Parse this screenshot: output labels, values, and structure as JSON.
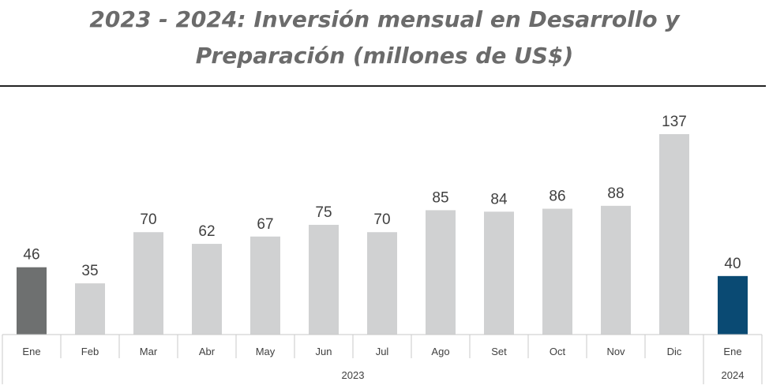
{
  "chart_data": {
    "type": "bar",
    "title": "2023 - 2024: Inversión mensual en Desarrollo y Preparación (millones de US$)",
    "title_lines": [
      "2023 - 2024: Inversión mensual en Desarrollo y",
      "Preparación (millones de US$)"
    ],
    "categories": [
      "Ene",
      "Feb",
      "Mar",
      "Abr",
      "May",
      "Jun",
      "Jul",
      "Ago",
      "Set",
      "Oct",
      "Nov",
      "Dic",
      "Ene"
    ],
    "values": [
      46,
      35,
      70,
      62,
      67,
      75,
      70,
      85,
      84,
      86,
      88,
      137,
      40
    ],
    "data_labels": [
      "46",
      "35",
      "70",
      "62",
      "67",
      "75",
      "70",
      "85",
      "84",
      "86",
      "88",
      "137",
      "40"
    ],
    "groups": [
      {
        "label": "2023",
        "start": 0,
        "end": 11
      },
      {
        "label": "2024",
        "start": 12,
        "end": 12
      }
    ],
    "bar_colors": [
      "#6e7070",
      "#d0d1d2",
      "#d0d1d2",
      "#d0d1d2",
      "#d0d1d2",
      "#d0d1d2",
      "#d0d1d2",
      "#d0d1d2",
      "#d0d1d2",
      "#d0d1d2",
      "#d0d1d2",
      "#d0d1d2",
      "#0a4a73"
    ],
    "xlabel": "",
    "ylabel": "",
    "ylim": [
      0,
      137
    ],
    "grid": false,
    "legend": "none"
  }
}
